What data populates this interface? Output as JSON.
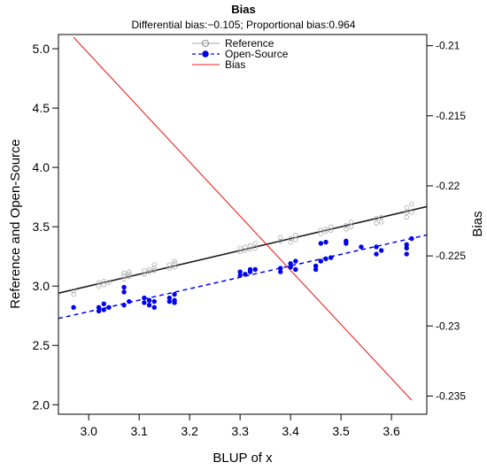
{
  "chart_data": {
    "type": "scatter",
    "title": "Bias",
    "subtitle": "Differential bias:−0.105; Proportional bias:0.964",
    "xlabel": "BLUP of x",
    "ylabel": "Reference and Open-Source",
    "y2label": "Bias",
    "xlim": [
      2.94,
      3.67
    ],
    "ylim": [
      1.92,
      5.12
    ],
    "y2lim": [
      -0.2363,
      -0.2092
    ],
    "x_ticks": [
      "3.0",
      "3.1",
      "3.2",
      "3.3",
      "3.4",
      "3.5",
      "3.6"
    ],
    "y_ticks": [
      "2.0",
      "2.5",
      "3.0",
      "3.5",
      "4.0",
      "4.5",
      "5.0"
    ],
    "y2_ticks": [
      "-0.21",
      "-0.215",
      "-0.22",
      "-0.225",
      "-0.23",
      "-0.235"
    ],
    "legend": {
      "position": "top-center",
      "entries": [
        "Reference",
        "Open-Source",
        "Bias"
      ]
    },
    "colors": {
      "reference": "#aaaaaa",
      "reference_line": "#1a1a1a",
      "open_source": "#0000ee",
      "bias": "#ee2222"
    },
    "series": [
      {
        "name": "Reference",
        "x": [
          2.97,
          2.97,
          3.02,
          3.02,
          3.03,
          3.03,
          3.04,
          3.07,
          3.07,
          3.07,
          3.08,
          3.08,
          3.08,
          3.11,
          3.11,
          3.12,
          3.12,
          3.13,
          3.13,
          3.13,
          3.16,
          3.16,
          3.17,
          3.17,
          3.17,
          3.3,
          3.3,
          3.31,
          3.31,
          3.32,
          3.32,
          3.33,
          3.33,
          3.38,
          3.38,
          3.4,
          3.4,
          3.41,
          3.41,
          3.46,
          3.46,
          3.47,
          3.47,
          3.48,
          3.48,
          3.51,
          3.51,
          3.52,
          3.52,
          3.57,
          3.57,
          3.58,
          3.58,
          3.63,
          3.63,
          3.63,
          3.64,
          3.64
        ],
        "y": [
          2.96,
          2.93,
          3.0,
          3.03,
          3.01,
          3.04,
          3.03,
          3.06,
          3.09,
          3.11,
          3.08,
          3.1,
          3.12,
          3.1,
          3.13,
          3.12,
          3.14,
          3.13,
          3.15,
          3.18,
          3.15,
          3.18,
          3.16,
          3.19,
          3.21,
          3.29,
          3.32,
          3.3,
          3.33,
          3.31,
          3.34,
          3.32,
          3.36,
          3.38,
          3.41,
          3.37,
          3.4,
          3.39,
          3.43,
          3.44,
          3.47,
          3.46,
          3.48,
          3.47,
          3.5,
          3.48,
          3.51,
          3.5,
          3.54,
          3.53,
          3.57,
          3.54,
          3.58,
          3.58,
          3.62,
          3.66,
          3.62,
          3.69
        ]
      },
      {
        "name": "Open-Source",
        "x": [
          2.97,
          3.02,
          3.02,
          3.03,
          3.03,
          3.04,
          3.07,
          3.07,
          3.07,
          3.08,
          3.11,
          3.11,
          3.12,
          3.12,
          3.13,
          3.13,
          3.16,
          3.16,
          3.17,
          3.17,
          3.17,
          3.3,
          3.3,
          3.31,
          3.32,
          3.32,
          3.33,
          3.38,
          3.38,
          3.4,
          3.4,
          3.41,
          3.41,
          3.45,
          3.45,
          3.46,
          3.46,
          3.47,
          3.47,
          3.48,
          3.51,
          3.51,
          3.54,
          3.57,
          3.57,
          3.58,
          3.63,
          3.63,
          3.63,
          3.64
        ],
        "y": [
          2.82,
          2.79,
          2.82,
          2.8,
          2.85,
          2.82,
          2.84,
          2.95,
          2.99,
          2.87,
          2.86,
          2.9,
          2.84,
          2.88,
          2.82,
          2.87,
          2.87,
          2.9,
          2.88,
          2.93,
          2.86,
          3.09,
          3.12,
          3.1,
          3.12,
          3.14,
          3.14,
          3.15,
          3.12,
          3.16,
          3.19,
          3.14,
          3.21,
          3.14,
          3.17,
          3.21,
          3.36,
          3.23,
          3.37,
          3.24,
          3.36,
          3.38,
          3.33,
          3.27,
          3.33,
          3.3,
          3.27,
          3.32,
          3.35,
          3.4
        ]
      }
    ],
    "lines": [
      {
        "name": "Reference",
        "x": [
          2.94,
          3.67
        ],
        "y": [
          2.94,
          3.67
        ]
      },
      {
        "name": "Open-Source",
        "x": [
          2.94,
          3.67
        ],
        "y": [
          2.727,
          3.431
        ]
      },
      {
        "name": "Bias",
        "axis": "y2",
        "x": [
          2.97,
          3.64
        ],
        "y": [
          -0.2094,
          -0.2353
        ]
      }
    ]
  }
}
